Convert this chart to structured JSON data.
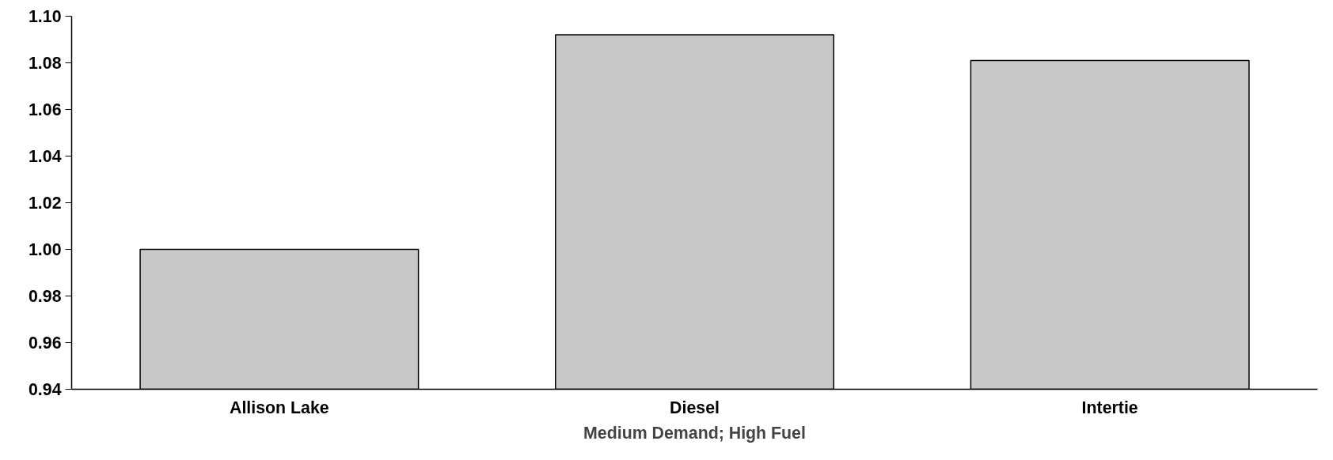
{
  "chart_data": {
    "type": "bar",
    "xlabel": "Medium Demand; High Fuel",
    "categories": [
      "Allison Lake",
      "Diesel",
      "Intertie"
    ],
    "values": [
      1.0,
      1.092,
      1.081
    ],
    "color": "#c8c8c8",
    "ylim": [
      0.94,
      1.1
    ],
    "yticks": [
      {
        "value": 0.94,
        "label": "0.94"
      },
      {
        "value": 0.96,
        "label": "0.96"
      },
      {
        "value": 0.98,
        "label": "0.98"
      },
      {
        "value": 1.0,
        "label": "1.00"
      },
      {
        "value": 1.02,
        "label": "1.02"
      },
      {
        "value": 1.04,
        "label": "1.04"
      },
      {
        "value": 1.06,
        "label": "1.06"
      },
      {
        "value": 1.08,
        "label": "1.08"
      },
      {
        "value": 1.1,
        "label": "1.10"
      }
    ],
    "grid": false
  }
}
